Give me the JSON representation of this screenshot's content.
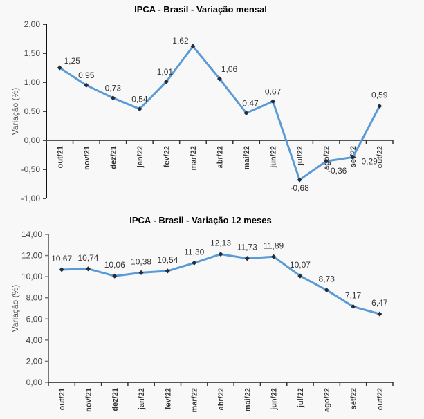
{
  "chart_data": [
    {
      "type": "line",
      "title": "IPCA - Brasil - Variação mensal",
      "xlabel": "",
      "ylabel": "Variação (%)",
      "categories": [
        "out/21",
        "nov/21",
        "dez/21",
        "jan/22",
        "fev/22",
        "mar/22",
        "abr/22",
        "mai/22",
        "jun/22",
        "jul/22",
        "ago/22",
        "set/22",
        "out/22"
      ],
      "values": [
        1.25,
        0.95,
        0.73,
        0.54,
        1.01,
        1.62,
        1.06,
        0.47,
        0.67,
        -0.68,
        -0.36,
        -0.29,
        0.59
      ],
      "data_labels": [
        "1,25",
        "0,95",
        "0,73",
        "0,54",
        "1,01",
        "1,62",
        "1,06",
        "0,47",
        "0,67",
        "-0,68",
        "-0,36",
        "-0,29",
        "0,59"
      ],
      "yticks": [
        "2,00",
        "1,50",
        "1,00",
        "0,50",
        "0,00",
        "-0,50",
        "-1,00"
      ],
      "ytick_values": [
        2,
        1.5,
        1,
        0.5,
        0,
        -0.5,
        -1
      ],
      "ylim": [
        -1,
        2
      ],
      "grid": false,
      "legend": "none",
      "line_color": "#5b9bd5",
      "marker_color": "#1f2d3d"
    },
    {
      "type": "line",
      "title": "IPCA - Brasil - Variação 12 meses",
      "xlabel": "",
      "ylabel": "Variação (%)",
      "categories": [
        "out/21",
        "nov/21",
        "dez/21",
        "jan/22",
        "fev/22",
        "mar/22",
        "abr/22",
        "mai/22",
        "jun/22",
        "jul/22",
        "ago/22",
        "set/22",
        "out/22"
      ],
      "values": [
        10.67,
        10.74,
        10.06,
        10.38,
        10.54,
        11.3,
        12.13,
        11.73,
        11.89,
        10.07,
        8.73,
        7.17,
        6.47
      ],
      "data_labels": [
        "10,67",
        "10,74",
        "10,06",
        "10,38",
        "10,54",
        "11,30",
        "12,13",
        "11,73",
        "11,89",
        "10,07",
        "8,73",
        "7,17",
        "6,47"
      ],
      "yticks": [
        "14,00",
        "12,00",
        "10,00",
        "8,00",
        "6,00",
        "4,00",
        "2,00",
        "0,00"
      ],
      "ytick_values": [
        14,
        12,
        10,
        8,
        6,
        4,
        2,
        0
      ],
      "ylim": [
        0,
        14
      ],
      "grid": false,
      "legend": "none",
      "line_color": "#5b9bd5",
      "marker_color": "#1f2d3d"
    }
  ]
}
